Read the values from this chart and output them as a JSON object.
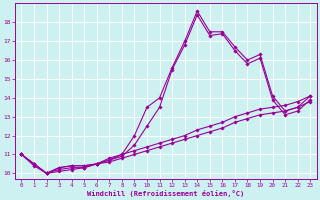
{
  "xlabel": "Windchill (Refroidissement éolien,°C)",
  "background_color": "#cdf0f0",
  "grid_color": "#ffffff",
  "line_color": "#990099",
  "xlim": [
    -0.5,
    23.5
  ],
  "ylim": [
    9.7,
    19.0
  ],
  "xticks": [
    0,
    1,
    2,
    3,
    4,
    5,
    6,
    7,
    8,
    9,
    10,
    11,
    12,
    13,
    14,
    15,
    16,
    17,
    18,
    19,
    20,
    21,
    22,
    23
  ],
  "yticks": [
    10,
    11,
    12,
    13,
    14,
    15,
    16,
    17,
    18
  ],
  "series_x": [
    [
      0,
      1,
      2,
      3,
      4,
      5,
      6,
      7,
      8,
      9,
      10,
      11,
      12,
      13,
      14,
      15,
      16,
      17,
      18,
      19,
      20,
      21,
      22,
      23
    ],
    [
      0,
      1,
      2,
      3,
      4,
      5,
      6,
      7,
      8,
      9,
      10,
      11,
      12,
      13,
      14,
      15,
      16,
      17,
      18,
      19,
      20,
      21,
      22,
      23
    ],
    [
      0,
      1,
      2,
      3,
      4,
      5,
      6,
      7,
      8,
      9,
      10,
      11,
      12,
      13,
      14,
      15,
      16,
      17,
      18,
      19,
      20,
      21,
      22,
      23
    ],
    [
      0,
      1,
      2,
      3,
      4,
      5,
      6,
      7,
      8,
      9,
      10,
      11,
      12,
      13,
      14,
      15,
      16,
      17,
      18,
      19,
      20,
      21,
      22,
      23
    ]
  ],
  "series_y": [
    [
      11.0,
      10.5,
      10.0,
      10.3,
      10.4,
      10.4,
      10.5,
      10.7,
      11.0,
      12.0,
      13.5,
      14.0,
      15.6,
      17.0,
      18.6,
      17.5,
      17.5,
      16.7,
      16.0,
      16.3,
      14.1,
      13.3,
      13.5,
      14.1
    ],
    [
      11.0,
      10.5,
      10.0,
      10.3,
      10.4,
      10.4,
      10.5,
      10.7,
      10.9,
      11.5,
      12.5,
      13.5,
      15.5,
      16.8,
      18.4,
      17.3,
      17.4,
      16.5,
      15.8,
      16.1,
      13.9,
      13.1,
      13.3,
      13.9
    ],
    [
      11.0,
      10.5,
      10.0,
      10.2,
      10.3,
      10.3,
      10.5,
      10.8,
      11.0,
      11.2,
      11.4,
      11.6,
      11.8,
      12.0,
      12.3,
      12.5,
      12.7,
      13.0,
      13.2,
      13.4,
      13.5,
      13.6,
      13.8,
      14.1
    ],
    [
      11.0,
      10.4,
      10.0,
      10.1,
      10.2,
      10.3,
      10.5,
      10.6,
      10.8,
      11.0,
      11.2,
      11.4,
      11.6,
      11.8,
      12.0,
      12.2,
      12.4,
      12.7,
      12.9,
      13.1,
      13.2,
      13.3,
      13.5,
      13.8
    ]
  ]
}
